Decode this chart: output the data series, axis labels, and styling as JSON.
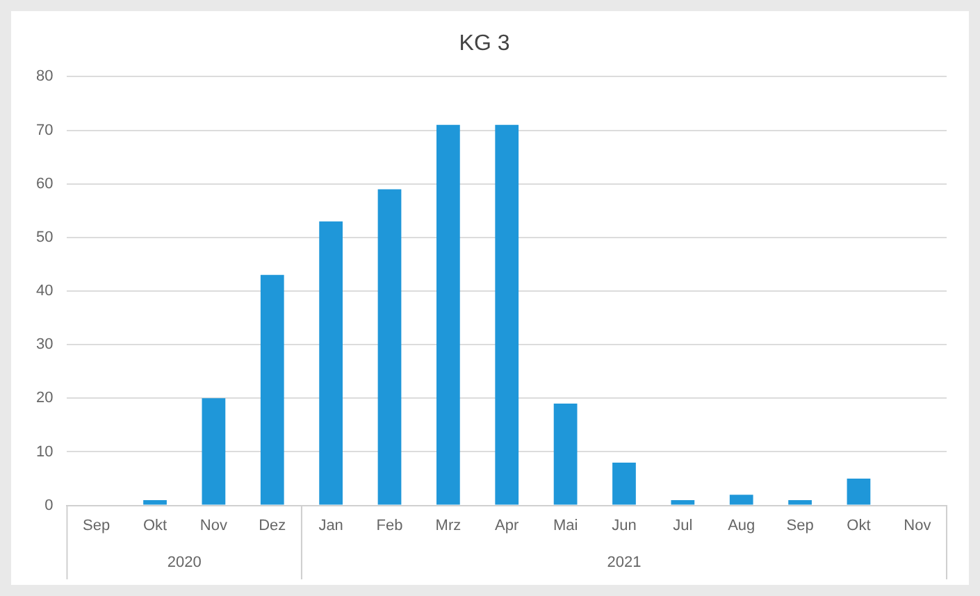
{
  "chart_data": {
    "type": "bar",
    "title": "KG 3",
    "categories": [
      "Sep",
      "Okt",
      "Nov",
      "Dez",
      "Jan",
      "Feb",
      "Mrz",
      "Apr",
      "Mai",
      "Jun",
      "Jul",
      "Aug",
      "Sep",
      "Okt",
      "Nov"
    ],
    "values": [
      0,
      1,
      20,
      43,
      53,
      59,
      71,
      71,
      19,
      8,
      1,
      2,
      1,
      5,
      0
    ],
    "color": "#1f97d9",
    "ylim": [
      0,
      80
    ],
    "yticks": [
      0,
      10,
      20,
      30,
      40,
      50,
      60,
      70,
      80
    ],
    "grid": "y",
    "legend": false,
    "annotations": [
      "2020",
      "2021"
    ]
  }
}
